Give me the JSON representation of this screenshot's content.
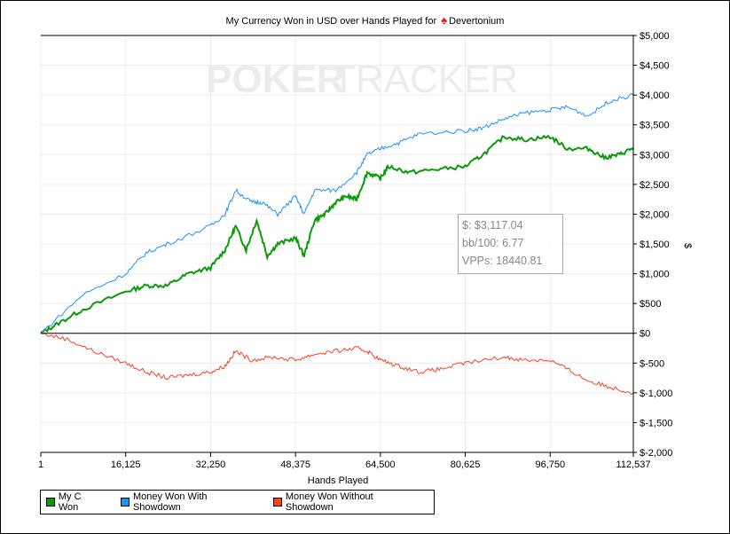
{
  "chart_data": {
    "type": "line",
    "title_prefix": "My Currency Won in USD over Hands Played for",
    "player": "Devertonium",
    "watermark": {
      "part1": "POKER",
      "part2": "TRACKER"
    },
    "xlabel": "Hands Played",
    "ylabel": "$",
    "xlim": [
      1,
      112537
    ],
    "ylim": [
      -2000,
      5000
    ],
    "x_ticks": [
      1,
      16125,
      32250,
      48375,
      64500,
      80625,
      96750,
      112537
    ],
    "x_tick_labels": [
      "1",
      "16,125",
      "32,250",
      "48,375",
      "64,500",
      "80,625",
      "96,750",
      "112,537"
    ],
    "y_ticks": [
      5000,
      4500,
      4000,
      3500,
      3000,
      2500,
      2000,
      1500,
      1000,
      500,
      0,
      -500,
      -1000,
      -1500,
      -2000
    ],
    "y_tick_labels": [
      "$5,000",
      "$4,500",
      "$4,000",
      "$3,500",
      "$3,000",
      "$2,500",
      "$2,000",
      "$1,500",
      "$1,000",
      "$500",
      "$0",
      "$-500",
      "$-1,000",
      "$-1,500",
      "$-2,000"
    ],
    "grid": true,
    "legend_position": "bottom-left",
    "series": [
      {
        "name": "My C Won",
        "color": "#0a9a0a",
        "x": [
          1,
          3000,
          8000,
          16125,
          20000,
          24000,
          28000,
          32250,
          35000,
          37000,
          39000,
          41000,
          43000,
          45000,
          48375,
          50000,
          52000,
          54000,
          56000,
          58000,
          60000,
          62000,
          64500,
          66000,
          70000,
          75000,
          80625,
          84000,
          88000,
          92000,
          96750,
          100000,
          104000,
          107000,
          110000,
          112537
        ],
        "y": [
          0,
          150,
          400,
          700,
          800,
          800,
          1000,
          1100,
          1400,
          1800,
          1400,
          1900,
          1300,
          1500,
          1600,
          1300,
          1900,
          2000,
          2200,
          2300,
          2250,
          2700,
          2600,
          2800,
          2700,
          2750,
          2800,
          3000,
          3300,
          3250,
          3300,
          3100,
          3100,
          2950,
          3000,
          3117
        ]
      },
      {
        "name": "Money Won With Showdown",
        "color": "#1e8fff",
        "x": [
          1,
          8000,
          16125,
          20000,
          24000,
          32250,
          35000,
          37000,
          40000,
          42000,
          45000,
          48375,
          50000,
          52000,
          56000,
          60000,
          62000,
          64500,
          68000,
          72000,
          80625,
          84000,
          88000,
          92000,
          96750,
          100000,
          104000,
          108000,
          112537
        ],
        "y": [
          0,
          650,
          1000,
          1350,
          1500,
          1800,
          2000,
          2400,
          2200,
          2200,
          2000,
          2300,
          2000,
          2400,
          2400,
          2700,
          3000,
          3100,
          3200,
          3350,
          3400,
          3450,
          3600,
          3700,
          3750,
          3800,
          3650,
          3900,
          4000
        ]
      },
      {
        "name": "Money Won Without Showdown",
        "color": "#ff4020",
        "x": [
          1,
          5000,
          10000,
          16125,
          20000,
          24000,
          28000,
          32250,
          35000,
          37000,
          40000,
          44000,
          48375,
          52000,
          56000,
          60000,
          62000,
          64500,
          68000,
          72000,
          76000,
          80625,
          88000,
          92000,
          96750,
          100000,
          104000,
          108000,
          112537
        ],
        "y": [
          0,
          -100,
          -300,
          -500,
          -650,
          -750,
          -700,
          -650,
          -550,
          -300,
          -450,
          -400,
          -450,
          -350,
          -300,
          -250,
          -300,
          -450,
          -550,
          -650,
          -600,
          -500,
          -400,
          -450,
          -450,
          -600,
          -800,
          -900,
          -1000
        ]
      }
    ]
  },
  "tooltip": {
    "dollars": "$: $3,117.04",
    "bb100": "bb/100: 6.77",
    "vpps": "VPPs: 18440.81"
  }
}
